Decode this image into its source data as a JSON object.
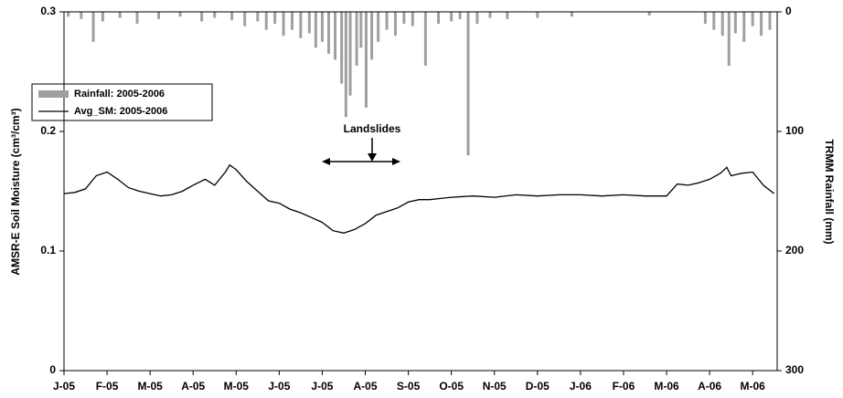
{
  "chart_data": {
    "type": "line",
    "y_label": "AMSR-E Soil Moisture (cm³/cm³)",
    "y2_label": "TRMM Rainfall (mm)",
    "annotation": "Landslides",
    "xlim": [
      0,
      16.57
    ],
    "xticks": [
      {
        "value": 0,
        "label": "J-05"
      },
      {
        "value": 1,
        "label": "F-05"
      },
      {
        "value": 2,
        "label": "M-05"
      },
      {
        "value": 3,
        "label": "A-05"
      },
      {
        "value": 4,
        "label": "M-05"
      },
      {
        "value": 5,
        "label": "J-05"
      },
      {
        "value": 6,
        "label": "J-05"
      },
      {
        "value": 7,
        "label": "A-05"
      },
      {
        "value": 8,
        "label": "S-05"
      },
      {
        "value": 9,
        "label": "O-05"
      },
      {
        "value": 10,
        "label": "N-05"
      },
      {
        "value": 11,
        "label": "D-05"
      },
      {
        "value": 12,
        "label": "J-06"
      },
      {
        "value": 13,
        "label": "F-06"
      },
      {
        "value": 14,
        "label": "M-06"
      },
      {
        "value": 15,
        "label": "A-06"
      },
      {
        "value": 16,
        "label": "M-06"
      }
    ],
    "ylim": [
      0,
      0.3
    ],
    "yticks": [
      0,
      0.1,
      0.2,
      0.3
    ],
    "y2lim": [
      300,
      0
    ],
    "y2ticks": [
      0,
      100,
      200,
      300
    ],
    "series": [
      {
        "name": "Rainfall: 2005-2006",
        "type": "bar",
        "axis": "y2",
        "color": "#a0a0a0",
        "x": [
          0.1,
          0.4,
          0.68,
          0.9,
          1.3,
          1.7,
          2.2,
          2.7,
          3.2,
          3.5,
          3.9,
          4.2,
          4.5,
          4.7,
          4.9,
          5.1,
          5.3,
          5.5,
          5.7,
          5.85,
          6.0,
          6.15,
          6.3,
          6.45,
          6.55,
          6.65,
          6.8,
          6.9,
          7.02,
          7.15,
          7.3,
          7.5,
          7.7,
          7.9,
          8.1,
          8.4,
          8.7,
          9.0,
          9.2,
          9.39,
          9.6,
          9.9,
          10.3,
          11.0,
          11.8,
          13.6,
          14.9,
          15.1,
          15.3,
          15.45,
          15.6,
          15.8,
          16.0,
          16.2,
          16.4
        ],
        "values": [
          4,
          6,
          25,
          8,
          5,
          10,
          6,
          4,
          8,
          5,
          7,
          12,
          8,
          15,
          10,
          20,
          15,
          22,
          18,
          30,
          25,
          35,
          40,
          60,
          88,
          70,
          45,
          30,
          80,
          40,
          25,
          15,
          20,
          10,
          12,
          45,
          10,
          8,
          6,
          120,
          10,
          5,
          6,
          5,
          4,
          3,
          10,
          15,
          20,
          45,
          18,
          25,
          12,
          20,
          15
        ]
      },
      {
        "name": "Avg_SM: 2005-2006",
        "type": "line",
        "color": "#000000",
        "x": [
          0,
          0.25,
          0.5,
          0.75,
          1.0,
          1.25,
          1.5,
          1.75,
          2.0,
          2.25,
          2.5,
          2.75,
          3.0,
          3.28,
          3.5,
          3.75,
          3.85,
          4.0,
          4.25,
          4.5,
          4.75,
          5.0,
          5.25,
          5.5,
          5.75,
          6.0,
          6.25,
          6.5,
          6.75,
          7.0,
          7.25,
          7.5,
          7.75,
          8.0,
          8.25,
          8.5,
          8.75,
          9.0,
          9.5,
          10.0,
          10.5,
          11.0,
          11.5,
          12.0,
          12.5,
          13.0,
          13.5,
          14.0,
          14.25,
          14.5,
          14.75,
          15.0,
          15.25,
          15.4,
          15.5,
          15.75,
          16.0,
          16.25,
          16.5
        ],
        "values": [
          0.148,
          0.149,
          0.152,
          0.163,
          0.166,
          0.16,
          0.153,
          0.15,
          0.148,
          0.146,
          0.147,
          0.15,
          0.155,
          0.16,
          0.155,
          0.166,
          0.172,
          0.168,
          0.158,
          0.15,
          0.142,
          0.14,
          0.135,
          0.132,
          0.128,
          0.124,
          0.117,
          0.115,
          0.118,
          0.123,
          0.13,
          0.133,
          0.136,
          0.141,
          0.143,
          0.143,
          0.144,
          0.145,
          0.146,
          0.145,
          0.147,
          0.146,
          0.147,
          0.147,
          0.146,
          0.147,
          0.146,
          0.146,
          0.156,
          0.155,
          0.157,
          0.16,
          0.165,
          0.17,
          0.163,
          0.165,
          0.166,
          0.155,
          0.148
        ]
      }
    ]
  }
}
